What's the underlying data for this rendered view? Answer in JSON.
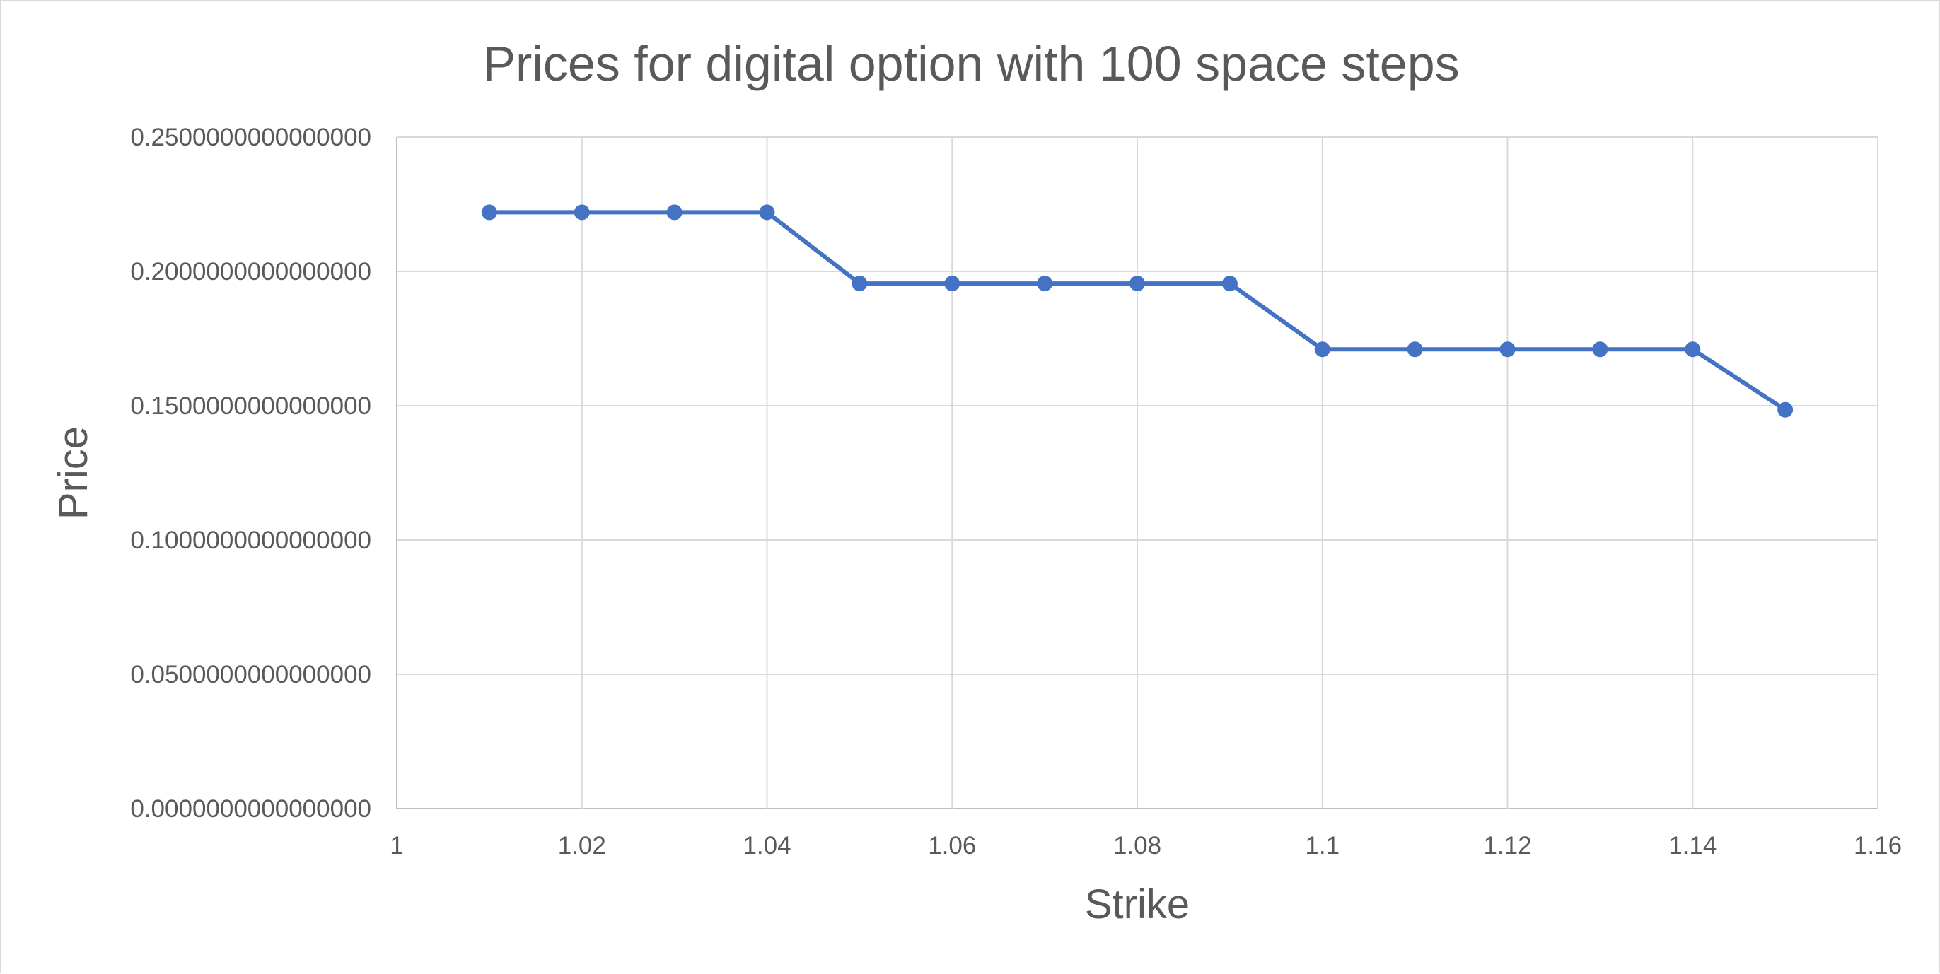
{
  "chart_data": {
    "type": "line",
    "title": "Prices for digital option with 100 space steps",
    "xlabel": "Strike",
    "ylabel": "Price",
    "xlim": [
      1,
      1.16
    ],
    "ylim": [
      0,
      0.25
    ],
    "x_ticks": [
      "1",
      "1.02",
      "1.04",
      "1.06",
      "1.08",
      "1.1",
      "1.12",
      "1.14",
      "1.16"
    ],
    "y_ticks": [
      "0.0000000000000000",
      "0.0500000000000000",
      "0.1000000000000000",
      "0.1500000000000000",
      "0.2000000000000000",
      "0.2500000000000000"
    ],
    "grid": true,
    "legend": "none",
    "series": [
      {
        "color": "#4472c4",
        "x": [
          1.01,
          1.02,
          1.03,
          1.04,
          1.05,
          1.06,
          1.07,
          1.08,
          1.09,
          1.1,
          1.11,
          1.12,
          1.13,
          1.14,
          1.15
        ],
        "y": [
          0.222,
          0.222,
          0.222,
          0.222,
          0.1955,
          0.1955,
          0.1955,
          0.1955,
          0.1955,
          0.171,
          0.171,
          0.171,
          0.171,
          0.171,
          0.1485
        ]
      }
    ]
  }
}
